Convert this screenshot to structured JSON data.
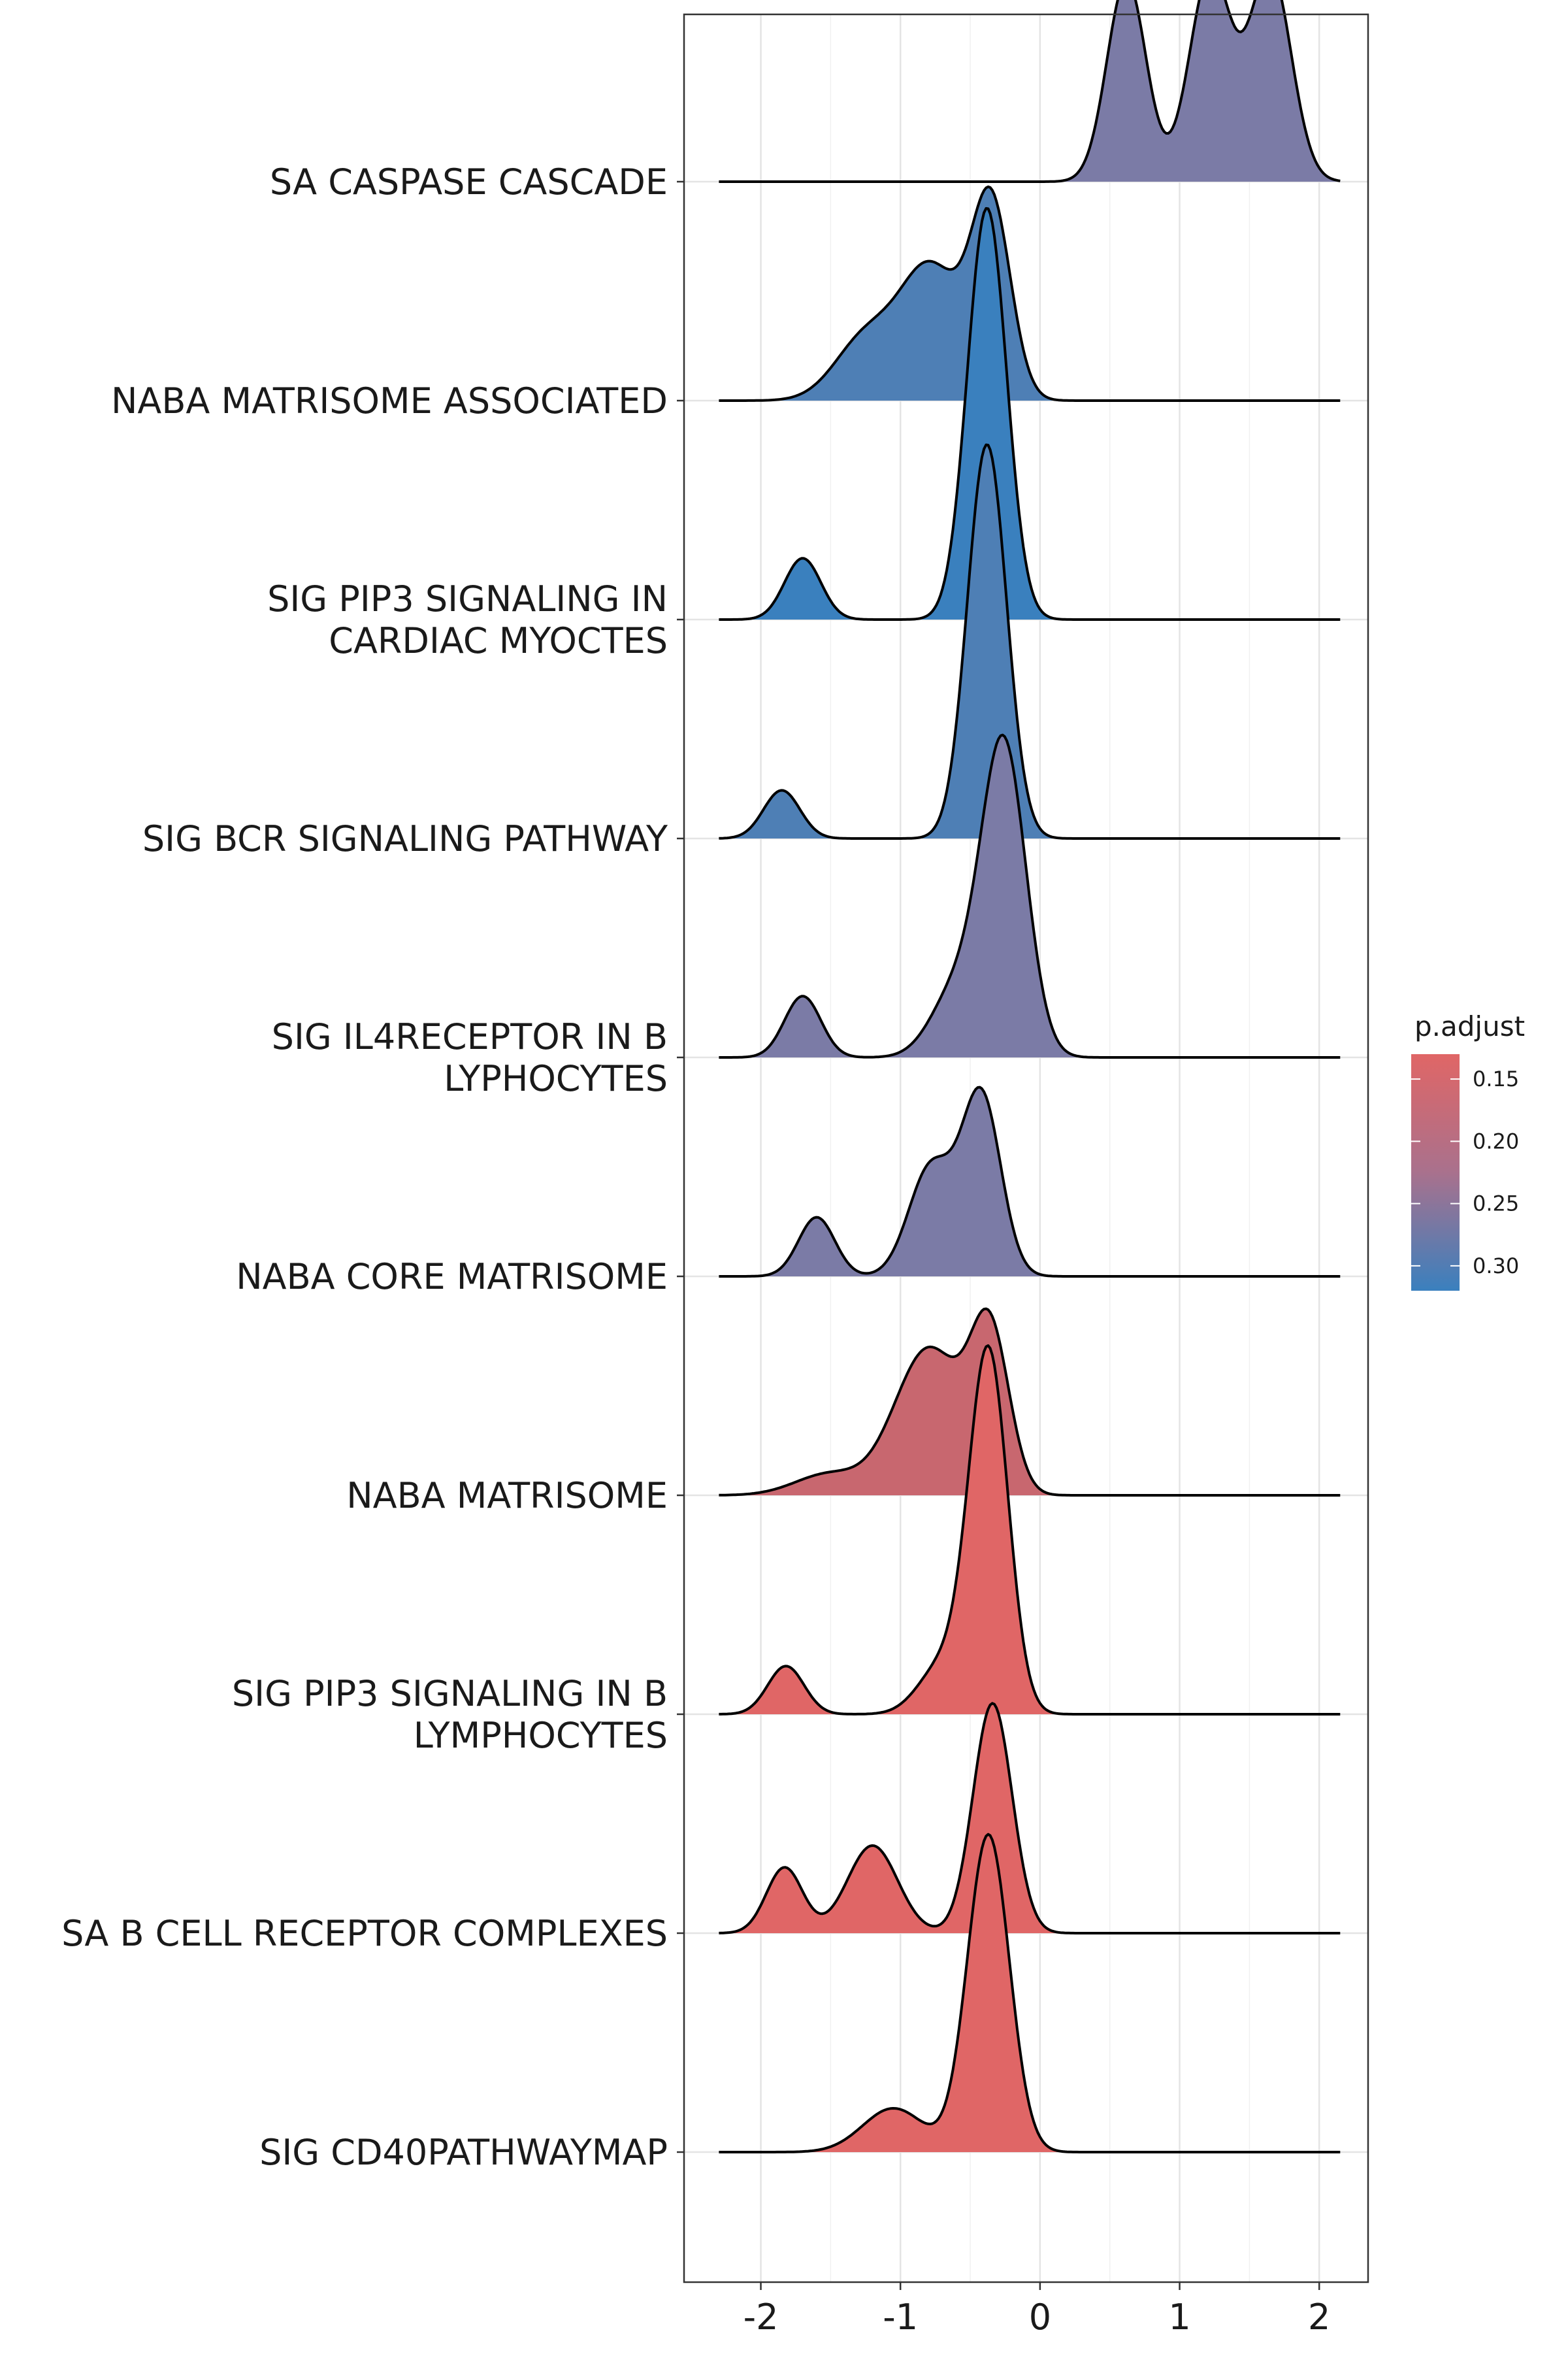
{
  "chart_data": {
    "type": "ridgeline",
    "title": "",
    "xlabel": "",
    "ylabel": "",
    "xlim": [
      -2.55,
      2.35
    ],
    "x_ticks": [
      -2,
      -1,
      0,
      1,
      2
    ],
    "x_tick_labels": [
      "-2",
      "-1",
      "0",
      "1",
      "2"
    ],
    "grid": true,
    "legend": {
      "title": "p.adjust",
      "position": "right",
      "ticks": [
        0.15,
        0.2,
        0.25,
        0.3
      ],
      "tick_labels": [
        "0.15",
        "0.20",
        "0.25",
        "0.30"
      ],
      "range": [
        0.13,
        0.32
      ],
      "low_color": "#E06666",
      "high_color": "#3A80BE"
    },
    "series": [
      {
        "name": "SA CASPASE CASCADE",
        "label_lines": [
          "SA CASPASE CASCADE"
        ],
        "p_adjust": 0.285,
        "fill": "#7B7BA6",
        "x_range": [
          -2.3,
          2.15
        ],
        "peaks": [
          {
            "mu": 0.62,
            "sd": 0.14,
            "h": 0.92
          },
          {
            "mu": 1.22,
            "sd": 0.15,
            "h": 0.95
          },
          {
            "mu": 1.65,
            "sd": 0.15,
            "h": 0.96
          }
        ]
      },
      {
        "name": "NABA MATRISOME ASSOCIATED",
        "label_lines": [
          "NABA MATRISOME ASSOCIATED"
        ],
        "p_adjust": 0.305,
        "fill": "#4E7FB5",
        "x_range": [
          -2.3,
          2.15
        ],
        "peaks": [
          {
            "mu": -1.25,
            "sd": 0.22,
            "h": 0.28
          },
          {
            "mu": -0.78,
            "sd": 0.22,
            "h": 0.6
          },
          {
            "mu": -0.35,
            "sd": 0.14,
            "h": 0.88
          }
        ]
      },
      {
        "name": "SIG PIP3 SIGNALING IN CARDIAC MYOCTES",
        "label_lines": [
          "SIG PIP3 SIGNALING IN",
          "CARDIAC MYOCTES"
        ],
        "p_adjust": 0.315,
        "fill": "#3A80BE",
        "x_range": [
          -2.3,
          2.15
        ],
        "peaks": [
          {
            "mu": -1.7,
            "sd": 0.13,
            "h": 0.28
          },
          {
            "mu": -0.38,
            "sd": 0.14,
            "h": 1.88
          }
        ]
      },
      {
        "name": "SIG BCR SIGNALING PATHWAY",
        "label_lines": [
          "SIG BCR SIGNALING PATHWAY"
        ],
        "p_adjust": 0.305,
        "fill": "#4E7FB5",
        "x_range": [
          -2.3,
          2.15
        ],
        "peaks": [
          {
            "mu": -1.85,
            "sd": 0.13,
            "h": 0.22
          },
          {
            "mu": -0.38,
            "sd": 0.14,
            "h": 1.8
          }
        ]
      },
      {
        "name": "SIG IL4RECEPTOR IN B LYPHOCYTES",
        "label_lines": [
          "SIG IL4RECEPTOR IN B",
          "LYPHOCYTES"
        ],
        "p_adjust": 0.285,
        "fill": "#7B7BA6",
        "x_range": [
          -2.3,
          2.15
        ],
        "peaks": [
          {
            "mu": -1.7,
            "sd": 0.13,
            "h": 0.28
          },
          {
            "mu": -0.6,
            "sd": 0.18,
            "h": 0.3
          },
          {
            "mu": -0.26,
            "sd": 0.16,
            "h": 1.42
          }
        ]
      },
      {
        "name": "NABA CORE MATRISOME",
        "label_lines": [
          "NABA CORE MATRISOME"
        ],
        "p_adjust": 0.285,
        "fill": "#7B7BA6",
        "x_range": [
          -2.3,
          2.15
        ],
        "peaks": [
          {
            "mu": -1.6,
            "sd": 0.13,
            "h": 0.27
          },
          {
            "mu": -0.78,
            "sd": 0.16,
            "h": 0.5
          },
          {
            "mu": -0.42,
            "sd": 0.14,
            "h": 0.82
          }
        ]
      },
      {
        "name": "NABA MATRISOME",
        "label_lines": [
          "NABA MATRISOME"
        ],
        "p_adjust": 0.21,
        "fill": "#C8676F",
        "x_range": [
          -2.3,
          2.15
        ],
        "peaks": [
          {
            "mu": -1.5,
            "sd": 0.25,
            "h": 0.1
          },
          {
            "mu": -0.95,
            "sd": 0.2,
            "h": 0.3
          },
          {
            "mu": -0.72,
            "sd": 0.2,
            "h": 0.48
          },
          {
            "mu": -0.36,
            "sd": 0.14,
            "h": 0.74
          }
        ]
      },
      {
        "name": "SIG PIP3 SIGNALING IN B LYMPHOCYTES",
        "label_lines": [
          "SIG PIP3 SIGNALING IN B",
          "LYMPHOCYTES"
        ],
        "p_adjust": 0.155,
        "fill": "#E06666",
        "x_range": [
          -2.3,
          2.15
        ],
        "peaks": [
          {
            "mu": -1.82,
            "sd": 0.13,
            "h": 0.22
          },
          {
            "mu": -0.7,
            "sd": 0.17,
            "h": 0.22
          },
          {
            "mu": -0.37,
            "sd": 0.14,
            "h": 1.65
          }
        ]
      },
      {
        "name": "SA B CELL RECEPTOR COMPLEXES",
        "label_lines": [
          "SA B CELL RECEPTOR COMPLEXES"
        ],
        "p_adjust": 0.155,
        "fill": "#E06666",
        "x_range": [
          -2.3,
          2.15
        ],
        "peaks": [
          {
            "mu": -1.83,
            "sd": 0.13,
            "h": 0.3
          },
          {
            "mu": -1.2,
            "sd": 0.18,
            "h": 0.4
          },
          {
            "mu": -0.34,
            "sd": 0.14,
            "h": 1.05
          }
        ]
      },
      {
        "name": "SIG CD40PATHWAYMAP",
        "label_lines": [
          "SIG CD40PATHWAYMAP"
        ],
        "p_adjust": 0.155,
        "fill": "#E06666",
        "x_range": [
          -2.3,
          2.15
        ],
        "peaks": [
          {
            "mu": -1.05,
            "sd": 0.22,
            "h": 0.2
          },
          {
            "mu": -0.37,
            "sd": 0.15,
            "h": 1.45
          }
        ]
      }
    ]
  }
}
